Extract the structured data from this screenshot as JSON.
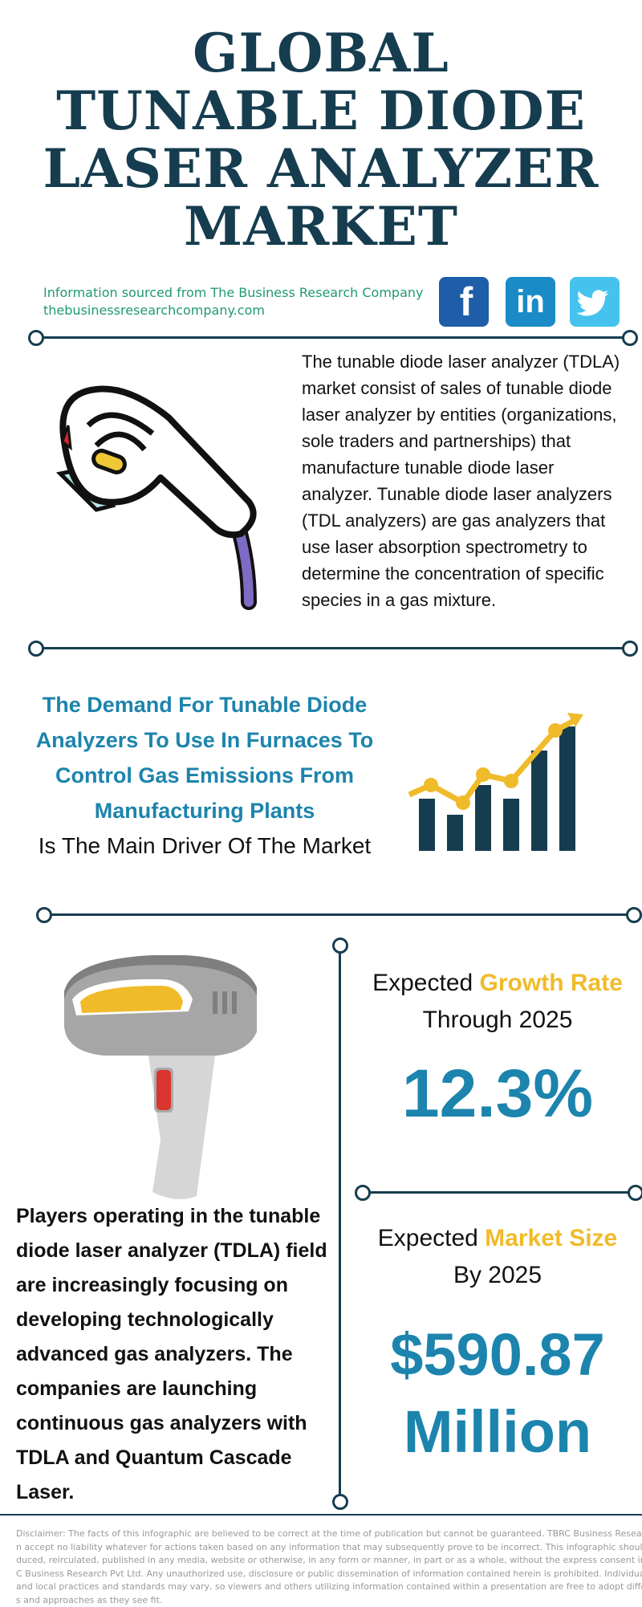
{
  "title_lines": [
    "GLOBAL",
    "TUNABLE DIODE",
    "LASER ANALYZER",
    "MARKET"
  ],
  "source": {
    "line1": "Information sourced from The Business Research Company",
    "line2": "thebusinessresearchcompany.com"
  },
  "social": [
    {
      "name": "facebook",
      "glyph": "f",
      "color": "#1e5da8"
    },
    {
      "name": "linkedin",
      "glyph": "in",
      "color": "#1a8bc6"
    },
    {
      "name": "twitter",
      "color": "#45c3ee"
    }
  ],
  "description": "The tunable diode laser analyzer (TDLA) market consist of sales of tunable diode laser analyzer by entities (organizations, sole traders and partnerships) that manufacture tunable diode laser analyzer. Tunable diode laser analyzers (TDL analyzers) are gas analyzers that use laser absorption spectrometry to determine the concentration of specific species in a gas mixture.",
  "driver": {
    "highlight": "The Demand For Tunable Diode Analyzers To Use In Furnaces To Control Gas Emissions From Manufacturing Plants",
    "suffix": "Is The Main Driver Of The Market"
  },
  "growth": {
    "label_prefix": "Expected ",
    "label_highlight": "Growth Rate",
    "label_suffix": "Through 2025",
    "value": "12.3%"
  },
  "market_size": {
    "label_prefix": "Expected ",
    "label_highlight": "Market Size",
    "label_suffix": "By 2025",
    "value_line1": "$590.87",
    "value_line2": "Million"
  },
  "players": "Players operating in the tunable diode laser analyzer (TDLA) field are increasingly focusing on developing technologically advanced gas analyzers. The companies are launching continuous gas analyzers with TDLA and Quantum Cascade Laser.",
  "disclaimer_lines": [
    "Disclaimer: The facts of this infographic are believed to be correct at the time of publication but cannot be guaranteed. TBRC Business Research Pvt Ltd c",
    "n accept no liability whatever for actions taken based on any information that may subsequently prove to be incorrect. This infographic should not be repr",
    "duced, reirculated, published in any media, website or otherwise, in any form or manner, in part or as a whole, without the express consent in writing of TB",
    "C Business Research Pvt Ltd. Any unauthorized use, disclosure or public dissemination of information contained herein is prohibited. Individual situations",
    "and local practices and standards may vary, so viewers and others utilizing information contained within a presentation are free to adopt differing standar",
    "s and approaches as they see fit."
  ],
  "colors": {
    "navy": "#163d4f",
    "blue": "#1c84ad",
    "gold": "#f0bb2a",
    "green": "#1f9a72"
  }
}
